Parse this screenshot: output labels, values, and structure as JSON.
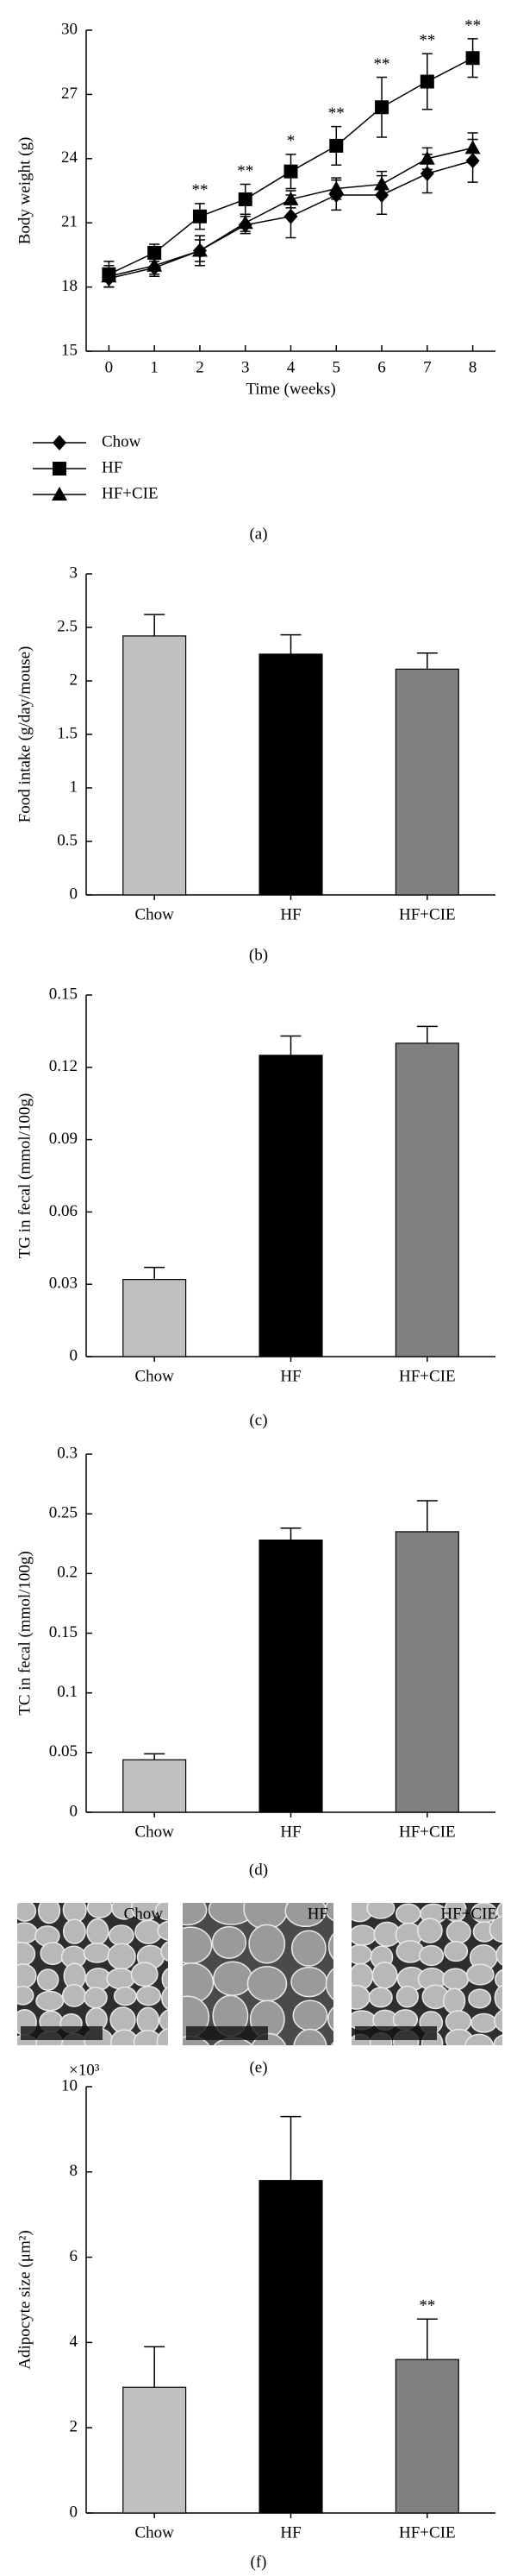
{
  "chart_data": [
    {
      "type": "line",
      "panel_label": "(a)",
      "x_label": "Time (weeks)",
      "y_label": "Body weight (g)",
      "x": [
        0,
        1,
        2,
        3,
        4,
        5,
        6,
        7,
        8
      ],
      "xlim": [
        -0.5,
        8.5
      ],
      "xticks": [
        0,
        1,
        2,
        3,
        4,
        5,
        6,
        7,
        8
      ],
      "ylim": [
        15,
        30
      ],
      "yticks": [
        15,
        18,
        21,
        24,
        27,
        30
      ],
      "series": [
        {
          "name": "Chow",
          "color": "#000000",
          "marker": "diamond",
          "values": [
            18.4,
            18.9,
            19.7,
            20.9,
            21.3,
            22.3,
            22.3,
            23.3,
            23.9
          ],
          "errors": [
            0.4,
            0.4,
            0.5,
            0.4,
            1.0,
            0.7,
            0.9,
            0.9,
            1.0
          ]
        },
        {
          "name": "HF",
          "color": "#000000",
          "marker": "square",
          "values": [
            18.6,
            19.6,
            21.3,
            22.1,
            23.4,
            24.6,
            26.4,
            27.6,
            28.7
          ],
          "errors": [
            0.6,
            0.4,
            0.6,
            0.7,
            0.8,
            0.9,
            1.4,
            1.3,
            0.9
          ]
        },
        {
          "name": "HF+CIE",
          "color": "#000000",
          "marker": "triangle",
          "values": [
            18.5,
            19.0,
            19.7,
            21.0,
            22.1,
            22.6,
            22.8,
            24.0,
            24.5
          ],
          "errors": [
            0.5,
            0.4,
            0.7,
            0.4,
            0.4,
            0.5,
            0.6,
            0.5,
            0.7
          ]
        }
      ],
      "annotations": [
        {
          "x": 2,
          "text": "**"
        },
        {
          "x": 3,
          "text": "**"
        },
        {
          "x": 4,
          "text": "*"
        },
        {
          "x": 5,
          "text": "**"
        },
        {
          "x": 6,
          "text": "**"
        },
        {
          "x": 7,
          "text": "**"
        },
        {
          "x": 8,
          "text": "**"
        }
      ]
    },
    {
      "type": "bar",
      "panel_label": "(b)",
      "y_label": "Food intake (g/day/mouse)",
      "categories": [
        "Chow",
        "HF",
        "HF+CIE"
      ],
      "values": [
        2.42,
        2.25,
        2.11
      ],
      "errors": [
        0.2,
        0.18,
        0.15
      ],
      "colors": [
        "#c0c0c0",
        "#000000",
        "#808080"
      ],
      "ylim": [
        0,
        3
      ],
      "yticks": [
        0,
        0.5,
        1,
        1.5,
        2,
        2.5,
        3
      ]
    },
    {
      "type": "bar",
      "panel_label": "(c)",
      "y_label": "TG in fecal (mmol/100g)",
      "categories": [
        "Chow",
        "HF",
        "HF+CIE"
      ],
      "values": [
        0.032,
        0.125,
        0.13
      ],
      "errors": [
        0.005,
        0.008,
        0.007
      ],
      "colors": [
        "#c0c0c0",
        "#000000",
        "#808080"
      ],
      "ylim": [
        0,
        0.15
      ],
      "yticks": [
        0,
        0.03,
        0.06,
        0.09,
        0.12,
        0.15
      ]
    },
    {
      "type": "bar",
      "panel_label": "(d)",
      "y_label": "TC in fecal (mmol/100g)",
      "categories": [
        "Chow",
        "HF",
        "HF+CIE"
      ],
      "values": [
        0.044,
        0.228,
        0.235
      ],
      "errors": [
        0.005,
        0.01,
        0.026
      ],
      "colors": [
        "#c0c0c0",
        "#000000",
        "#808080"
      ],
      "ylim": [
        0,
        0.3
      ],
      "yticks": [
        0,
        0.05,
        0.1,
        0.15,
        0.2,
        0.25,
        0.3
      ]
    },
    {
      "type": "bar",
      "panel_label": "(f)",
      "y_label": "Adipocyte size (μm²)",
      "y_multiplier": "×10³",
      "categories": [
        "Chow",
        "HF",
        "HF+CIE"
      ],
      "values": [
        2.95,
        7.8,
        3.6
      ],
      "errors": [
        0.95,
        1.5,
        0.95
      ],
      "colors": [
        "#c0c0c0",
        "#000000",
        "#808080"
      ],
      "ylim": [
        0,
        10
      ],
      "yticks": [
        0,
        2,
        4,
        6,
        8,
        10
      ],
      "annotations": [
        {
          "x": "HF+CIE",
          "text": "**"
        }
      ]
    }
  ],
  "micrographs": {
    "labels": [
      "Chow",
      "HF",
      "HF+CIE"
    ],
    "panel_label": "(e)"
  }
}
